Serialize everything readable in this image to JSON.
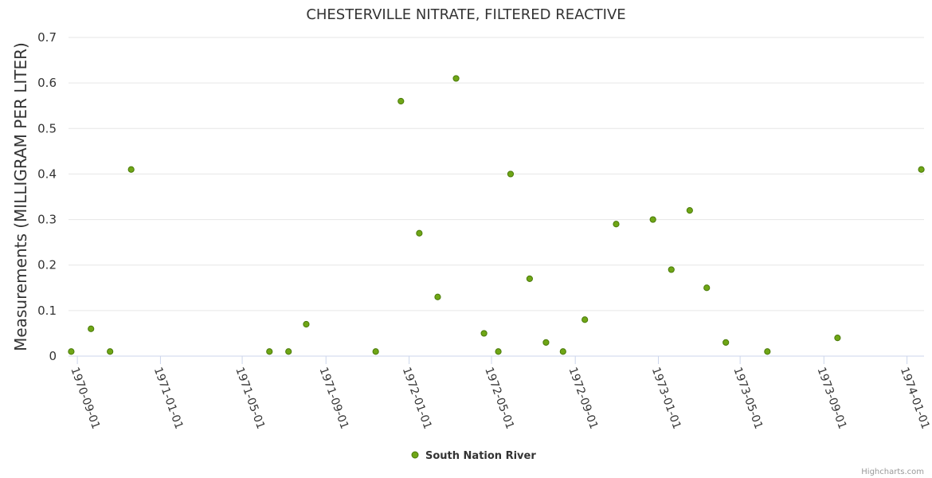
{
  "chart_data": {
    "type": "scatter",
    "title": "CHESTERVILLE NITRATE, FILTERED REACTIVE",
    "xlabel": "",
    "ylabel": "Measurements (MILLIGRAM PER LITER)",
    "ylim": [
      0,
      0.7
    ],
    "yticks": [
      "0",
      "0.1",
      "0.2",
      "0.3",
      "0.4",
      "0.5",
      "0.6",
      "0.7"
    ],
    "xlim": [
      "1970-08-19",
      "1974-01-26"
    ],
    "xticks": [
      "1970-09-01",
      "1971-01-01",
      "1971-05-01",
      "1971-09-01",
      "1972-01-01",
      "1972-05-01",
      "1972-09-01",
      "1973-01-01",
      "1973-05-01",
      "1973-09-01",
      "1974-01-01"
    ],
    "grid": true,
    "legend_position": "bottom-center",
    "series": [
      {
        "name": "South Nation River",
        "color": "#6fa616",
        "points": [
          {
            "x": "1970-08-23",
            "y": 0.01
          },
          {
            "x": "1970-09-21",
            "y": 0.06
          },
          {
            "x": "1970-10-19",
            "y": 0.01
          },
          {
            "x": "1970-11-19",
            "y": 0.41
          },
          {
            "x": "1971-06-10",
            "y": 0.01
          },
          {
            "x": "1971-07-08",
            "y": 0.01
          },
          {
            "x": "1971-08-03",
            "y": 0.07
          },
          {
            "x": "1971-11-13",
            "y": 0.01
          },
          {
            "x": "1971-12-20",
            "y": 0.56
          },
          {
            "x": "1972-01-16",
            "y": 0.27
          },
          {
            "x": "1972-02-12",
            "y": 0.13
          },
          {
            "x": "1972-03-10",
            "y": 0.61
          },
          {
            "x": "1972-04-20",
            "y": 0.05
          },
          {
            "x": "1972-05-11",
            "y": 0.01
          },
          {
            "x": "1972-05-29",
            "y": 0.4
          },
          {
            "x": "1972-06-26",
            "y": 0.17
          },
          {
            "x": "1972-07-20",
            "y": 0.03
          },
          {
            "x": "1972-08-14",
            "y": 0.01
          },
          {
            "x": "1972-09-15",
            "y": 0.08
          },
          {
            "x": "1972-10-31",
            "y": 0.29
          },
          {
            "x": "1972-12-24",
            "y": 0.3
          },
          {
            "x": "1973-01-20",
            "y": 0.19
          },
          {
            "x": "1973-02-16",
            "y": 0.32
          },
          {
            "x": "1973-03-13",
            "y": 0.15
          },
          {
            "x": "1973-04-10",
            "y": 0.03
          },
          {
            "x": "1973-06-10",
            "y": 0.01
          },
          {
            "x": "1973-09-21",
            "y": 0.04
          },
          {
            "x": "1974-01-22",
            "y": 0.41
          }
        ]
      }
    ],
    "credits": "Highcharts.com"
  }
}
